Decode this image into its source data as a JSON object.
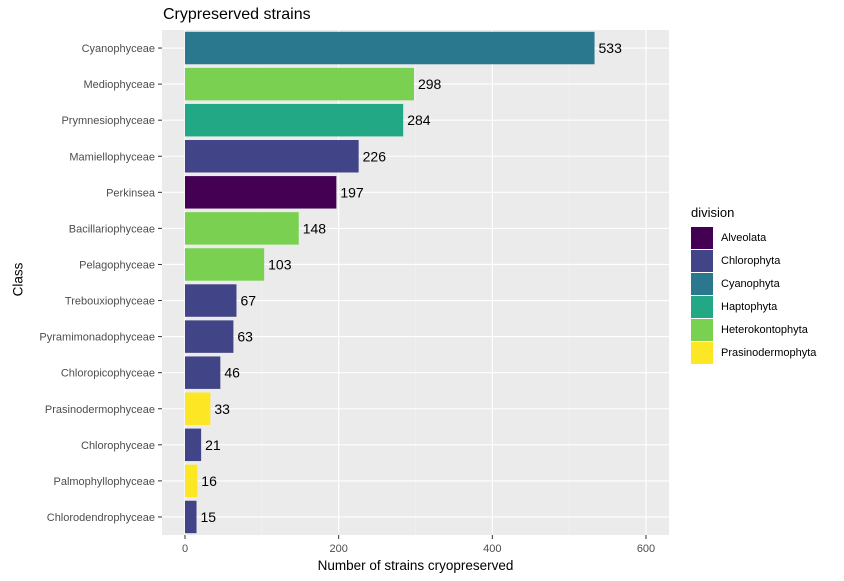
{
  "chart_data": {
    "type": "bar",
    "orientation": "horizontal",
    "title": "Crypreserved strains",
    "xlabel": "Number of strains cryopreserved",
    "ylabel": "Class",
    "xlim": [
      0,
      620
    ],
    "xticks": [
      0,
      200,
      400,
      600
    ],
    "grid": true,
    "legend_title": "division",
    "legend_position": "right",
    "legend": [
      {
        "name": "Alveolata",
        "color": "#440154"
      },
      {
        "name": "Chlorophyta",
        "color": "#414487"
      },
      {
        "name": "Cyanophyta",
        "color": "#2A788E"
      },
      {
        "name": "Haptophyta",
        "color": "#22A884"
      },
      {
        "name": "Heterokontophyta",
        "color": "#7AD151"
      },
      {
        "name": "Prasinodermophyta",
        "color": "#FDE725"
      }
    ],
    "bars": [
      {
        "category": "Cyanophyceae",
        "value": 533,
        "division": "Cyanophyta"
      },
      {
        "category": "Mediophyceae",
        "value": 298,
        "division": "Heterokontophyta"
      },
      {
        "category": "Prymnesiophyceae",
        "value": 284,
        "division": "Haptophyta"
      },
      {
        "category": "Mamiellophyceae",
        "value": 226,
        "division": "Chlorophyta"
      },
      {
        "category": "Perkinsea",
        "value": 197,
        "division": "Alveolata"
      },
      {
        "category": "Bacillariophyceae",
        "value": 148,
        "division": "Heterokontophyta"
      },
      {
        "category": "Pelagophyceae",
        "value": 103,
        "division": "Heterokontophyta"
      },
      {
        "category": "Trebouxiophyceae",
        "value": 67,
        "division": "Chlorophyta"
      },
      {
        "category": "Pyramimonadophyceae",
        "value": 63,
        "division": "Chlorophyta"
      },
      {
        "category": "Chloropicophyceae",
        "value": 46,
        "division": "Chlorophyta"
      },
      {
        "category": "Prasinodermophyceae",
        "value": 33,
        "division": "Prasinodermophyta"
      },
      {
        "category": "Chlorophyceae",
        "value": 21,
        "division": "Chlorophyta"
      },
      {
        "category": "Palmophyllophyceae",
        "value": 16,
        "division": "Prasinodermophyta"
      },
      {
        "category": "Chlorodendrophyceae",
        "value": 15,
        "division": "Chlorophyta"
      }
    ]
  }
}
